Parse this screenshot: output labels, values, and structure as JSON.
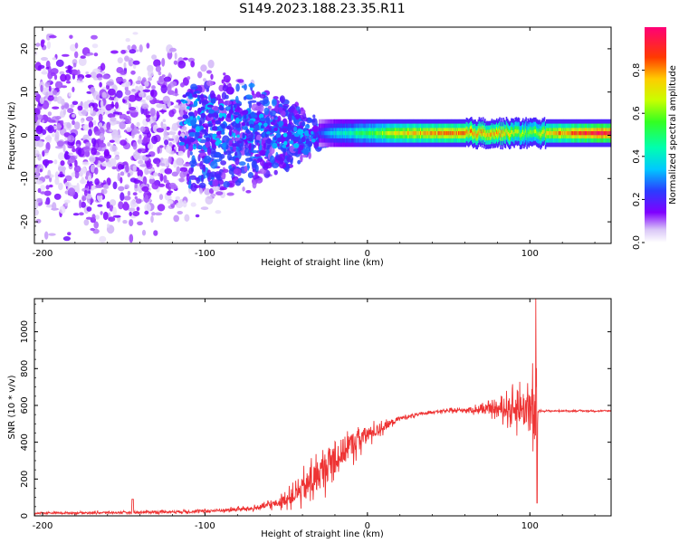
{
  "title": "S149.2023.188.23.35.R11",
  "chart_data": [
    {
      "type": "heatmap",
      "xlabel": "Height of straight line (km)",
      "ylabel": "Frequency (Hz)",
      "xlim": [
        -205,
        150
      ],
      "ylim": [
        -25,
        25
      ],
      "x_ticks": [
        -200,
        -100,
        0,
        100
      ],
      "y_ticks": [
        -20,
        -10,
        0,
        10,
        20
      ],
      "colorbar": {
        "label": "Normalized spectral amplitude",
        "range": [
          0,
          1
        ],
        "ticks": [
          0.0,
          0.2,
          0.4,
          0.6,
          0.8
        ]
      },
      "ridge_frequency_hz": 0.5,
      "ridge_amplitude": [
        {
          "x": -200,
          "level": 0.03
        },
        {
          "x": -150,
          "level": 0.05
        },
        {
          "x": -100,
          "level": 0.08
        },
        {
          "x": -60,
          "level": 0.12
        },
        {
          "x": -40,
          "level": 0.15
        },
        {
          "x": -30,
          "level": 0.25
        },
        {
          "x": -20,
          "level": 0.4
        },
        {
          "x": 0,
          "level": 0.55
        },
        {
          "x": 20,
          "level": 0.75
        },
        {
          "x": 50,
          "level": 0.85
        },
        {
          "x": 80,
          "level": 0.8
        },
        {
          "x": 100,
          "level": 0.6
        },
        {
          "x": 110,
          "level": 0.75
        },
        {
          "x": 130,
          "level": 0.9
        },
        {
          "x": 150,
          "level": 1.0
        }
      ]
    },
    {
      "type": "line",
      "xlabel": "Height of straight line (km)",
      "ylabel": "SNR (10 * v/v)",
      "xlim": [
        -205,
        150
      ],
      "ylim": [
        0,
        1180
      ],
      "x_ticks": [
        -200,
        -100,
        0,
        100
      ],
      "y_ticks": [
        0,
        200,
        400,
        600,
        800,
        1000
      ],
      "line_color": "#ee3333",
      "envelope": {
        "x": [
          -205,
          -150,
          -100,
          -70,
          -55,
          -45,
          -35,
          -25,
          -15,
          -5,
          5,
          20,
          40,
          60,
          80,
          95,
          100,
          104,
          105,
          110,
          130,
          150
        ],
        "mid": [
          15,
          18,
          25,
          40,
          70,
          110,
          180,
          270,
          350,
          420,
          460,
          530,
          565,
          575,
          580,
          585,
          580,
          500,
          570,
          570,
          570,
          570
        ],
        "amp": [
          8,
          10,
          15,
          20,
          40,
          80,
          160,
          170,
          150,
          110,
          60,
          20,
          10,
          20,
          60,
          180,
          280,
          350,
          8,
          6,
          6,
          6
        ]
      }
    }
  ]
}
